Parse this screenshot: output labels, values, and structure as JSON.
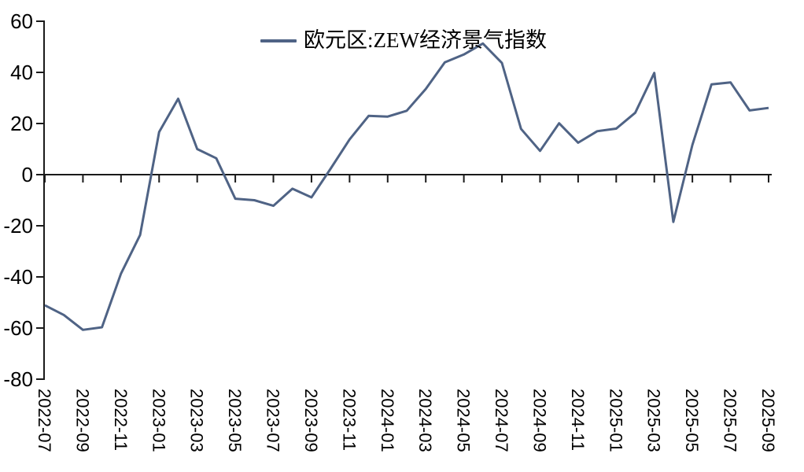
{
  "chart_data": {
    "type": "line",
    "title": "",
    "legend_position": "top-center",
    "grid": false,
    "background_color": "#ffffff",
    "axis_color": "#1a1a1a",
    "x": [
      "2022-07",
      "2022-08",
      "2022-09",
      "2022-10",
      "2022-11",
      "2022-12",
      "2023-01",
      "2023-02",
      "2023-03",
      "2023-04",
      "2023-05",
      "2023-06",
      "2023-07",
      "2023-08",
      "2023-09",
      "2023-10",
      "2023-11",
      "2023-12",
      "2024-01",
      "2024-02",
      "2024-03",
      "2024-04",
      "2024-05",
      "2024-06",
      "2024-07",
      "2024-08",
      "2024-09",
      "2024-10",
      "2024-11",
      "2024-12",
      "2025-01",
      "2025-02",
      "2025-03",
      "2025-04",
      "2025-05",
      "2025-06",
      "2025-07",
      "2025-08",
      "2025-09"
    ],
    "x_tick_every": 2,
    "x_tick_labels": [
      "2022-07",
      "2022-09",
      "2022-11",
      "2023-01",
      "2023-03",
      "2023-05",
      "2023-07",
      "2023-09",
      "2023-11",
      "2024-01",
      "2024-03",
      "2024-05",
      "2024-07",
      "2024-09",
      "2024-11",
      "2025-01",
      "2025-03",
      "2025-05",
      "2025-07",
      "2025-09"
    ],
    "series": [
      {
        "name": "欧元区:ZEW经济景气指数",
        "color": "#4F6385",
        "values": [
          -51.1,
          -54.9,
          -60.7,
          -59.7,
          -38.7,
          -23.6,
          16.7,
          29.7,
          10.0,
          6.4,
          -9.4,
          -10.0,
          -12.2,
          -5.5,
          -8.9,
          2.3,
          13.8,
          23.0,
          22.7,
          25.0,
          33.5,
          43.9,
          47.0,
          51.3,
          43.7,
          17.9,
          9.3,
          20.1,
          12.5,
          17.0,
          18.0,
          24.2,
          39.8,
          -18.5,
          11.6,
          35.3,
          36.1,
          25.1,
          26.1
        ]
      }
    ],
    "ylim": [
      -80,
      60
    ],
    "yticks": [
      60,
      40,
      20,
      0,
      -20,
      -40,
      -60,
      -80
    ],
    "xlabel": "",
    "ylabel": ""
  }
}
